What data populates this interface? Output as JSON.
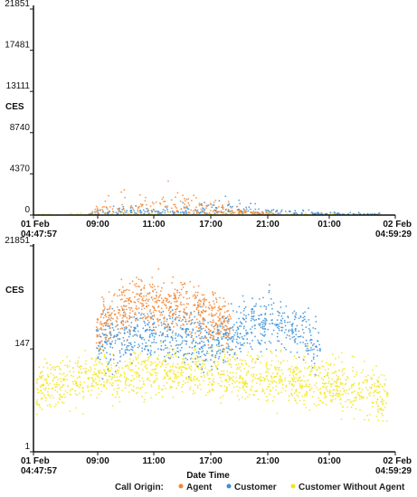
{
  "chart_data": [
    {
      "type": "scatter",
      "panel": "top",
      "scale": "linear",
      "ylabel": "CES",
      "ylim": [
        0,
        21851
      ],
      "y_ticks": [
        "0",
        "4370",
        "8740",
        "13111",
        "17481",
        "21851"
      ],
      "x_ticks": [
        "01 Feb\n04:47:57",
        "09:00",
        "11:00",
        "17:00",
        "21:00",
        "01:00",
        "02 Feb\n04:59:29"
      ],
      "series": [
        {
          "name": "Agent",
          "color": "#f28530",
          "x": [
            "01 Feb 08:30",
            "01 Feb 09:30",
            "01 Feb 10:30",
            "01 Feb 11:30",
            "01 Feb 13:00",
            "01 Feb 14:30",
            "01 Feb 16:00",
            "01 Feb 18:00",
            "01 Feb 19:30",
            "01 Feb 21:00"
          ],
          "y": [
            400,
            1200,
            2100,
            1500,
            2600,
            1800,
            1400,
            900,
            500,
            200
          ]
        },
        {
          "name": "Customer",
          "color": "#3a8fd6",
          "x": [
            "01 Feb 08:30",
            "01 Feb 10:00",
            "01 Feb 12:00",
            "01 Feb 14:00",
            "01 Feb 16:00",
            "01 Feb 18:00",
            "01 Feb 19:00",
            "01 Feb 20:30",
            "01 Feb 22:30",
            "02 Feb 00:30",
            "02 Feb 02:30",
            "02 Feb 04:00"
          ],
          "y": [
            300,
            700,
            900,
            800,
            1000,
            1400,
            1100,
            600,
            500,
            300,
            200,
            150
          ]
        },
        {
          "name": "Customer Without Agent",
          "color": "#f5e51a",
          "x": [
            "01 Feb 05:00",
            "01 Feb 08:00",
            "01 Feb 12:00",
            "01 Feb 16:00",
            "01 Feb 20:00",
            "02 Feb 00:00",
            "02 Feb 04:30"
          ],
          "y": [
            80,
            150,
            250,
            250,
            200,
            120,
            90
          ]
        }
      ]
    },
    {
      "type": "scatter",
      "panel": "bottom",
      "scale": "log",
      "ylabel": "CES",
      "xlabel": "Date Time",
      "ylim": [
        1,
        21851
      ],
      "y_ticks": [
        "1",
        "147",
        "21851"
      ],
      "x_ticks": [
        "01 Feb\n04:47:57",
        "09:00",
        "11:00",
        "17:00",
        "21:00",
        "01:00",
        "02 Feb\n04:59:29"
      ],
      "series": [
        {
          "name": "Agent",
          "color": "#f28530",
          "x": [
            "01 Feb 09:00",
            "01 Feb 10:30",
            "01 Feb 12:00",
            "01 Feb 14:00",
            "01 Feb 16:00",
            "01 Feb 18:00"
          ],
          "y": [
            300,
            900,
            1500,
            1200,
            900,
            500
          ]
        },
        {
          "name": "Customer",
          "color": "#3a8fd6",
          "x": [
            "01 Feb 09:00",
            "01 Feb 11:00",
            "01 Feb 13:00",
            "01 Feb 15:00",
            "01 Feb 17:00",
            "01 Feb 19:00",
            "01 Feb 21:00",
            "02 Feb 00:00"
          ],
          "y": [
            150,
            250,
            300,
            250,
            200,
            400,
            600,
            120
          ]
        },
        {
          "name": "Customer Without Agent",
          "color": "#f5e51a",
          "x": [
            "01 Feb 05:00",
            "01 Feb 09:00",
            "01 Feb 13:00",
            "01 Feb 17:00",
            "01 Feb 21:00",
            "02 Feb 01:00",
            "02 Feb 04:30"
          ],
          "y": [
            20,
            40,
            50,
            45,
            35,
            25,
            15
          ]
        }
      ]
    }
  ],
  "legend": {
    "title": "Call Origin:",
    "items": [
      {
        "label": "Agent",
        "color": "#f28530"
      },
      {
        "label": "Customer",
        "color": "#3a8fd6"
      },
      {
        "label": "Customer Without Agent",
        "color": "#f5e51a"
      }
    ]
  }
}
